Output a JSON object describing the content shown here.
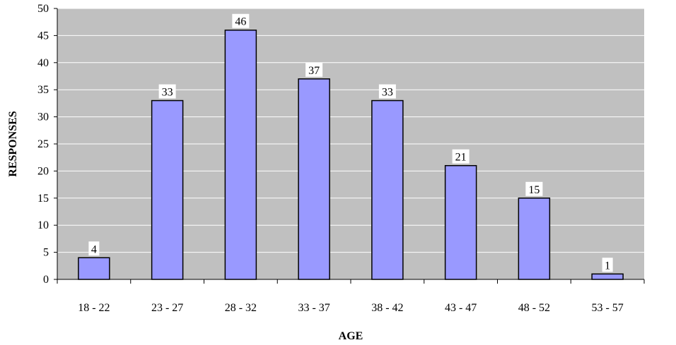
{
  "chart_data": {
    "type": "bar",
    "title": "",
    "xlabel": "AGE",
    "ylabel": "RESPONSES",
    "categories": [
      "18 - 22",
      "23 - 27",
      "28 - 32",
      "33 - 37",
      "38 - 42",
      "43 - 47",
      "48 - 52",
      "53 - 57"
    ],
    "values": [
      4,
      33,
      46,
      37,
      33,
      21,
      15,
      1
    ],
    "data_labels": [
      "4",
      "33",
      "46",
      "37",
      "33",
      "21",
      "15",
      "1"
    ],
    "ylim": [
      0,
      50
    ],
    "yticks": [
      0,
      5,
      10,
      15,
      20,
      25,
      30,
      35,
      40,
      45,
      50
    ],
    "grid": true,
    "legend": "none",
    "colors": {
      "plot_background": "#c0c0c0",
      "bar_fill": "#9999ff",
      "bar_stroke": "#000000",
      "gridline": "#ffffff",
      "label_background": "#ffffff"
    }
  }
}
